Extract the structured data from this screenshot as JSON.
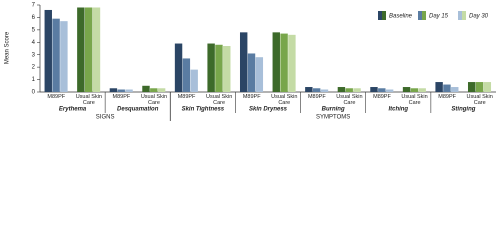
{
  "chart_data": {
    "type": "bar",
    "y_label": "Mean Score",
    "sections": [
      {
        "label": "SIGNS",
        "groups": [
          {
            "label": "Erythema",
            "categories": [
              "M89PF",
              "Usual Skin Care"
            ]
          },
          {
            "label": "Desquamation",
            "categories": [
              "M89PF",
              "Usual Skin Care"
            ]
          }
        ]
      },
      {
        "label": "SYMPTOMS",
        "groups": [
          {
            "label": "Skin Tightness",
            "categories": [
              "M89PF",
              "Usual Skin Care"
            ]
          },
          {
            "label": "Skin Dryness",
            "categories": [
              "M89PF",
              "Usual Skin Care"
            ]
          },
          {
            "label": "Burning",
            "categories": [
              "M89PF",
              "Usual Skin Care"
            ]
          },
          {
            "label": "Itching",
            "categories": [
              "M89PF",
              "Usual Skin Care"
            ]
          },
          {
            "label": "Stinging",
            "categories": [
              "M89PF",
              "Usual Skin Care"
            ]
          }
        ]
      }
    ],
    "series": [
      {
        "name": "Baseline",
        "colors": [
          "#2b4565",
          "#3d6a2a"
        ],
        "values": [
          6.6,
          6.8,
          0.3,
          0.5,
          3.9,
          3.9,
          4.8,
          4.8,
          0.4,
          0.4,
          0.4,
          0.4,
          0.8,
          0.8
        ]
      },
      {
        "name": "Day 15",
        "colors": [
          "#5a7ca2",
          "#78a64b"
        ],
        "values": [
          5.9,
          6.8,
          0.2,
          0.3,
          2.7,
          3.8,
          3.1,
          4.7,
          0.3,
          0.3,
          0.3,
          0.3,
          0.6,
          0.8
        ]
      },
      {
        "name": "Day 30",
        "colors": [
          "#a8bfd9",
          "#c4dba5"
        ],
        "values": [
          5.7,
          6.8,
          0.2,
          0.3,
          1.8,
          3.7,
          2.8,
          4.6,
          0.2,
          0.3,
          0.2,
          0.3,
          0.4,
          0.8
        ]
      }
    ],
    "ylim": [
      0,
      7
    ],
    "yticks": [
      0,
      1,
      2,
      3,
      4,
      5,
      6,
      7
    ],
    "grid": false,
    "legend": "upper right"
  }
}
